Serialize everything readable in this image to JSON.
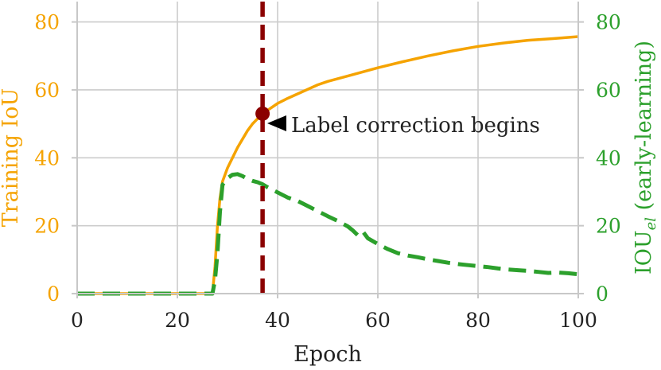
{
  "chart_data": {
    "type": "line",
    "xlabel": "Epoch",
    "ylabel_left": "Training IoU",
    "ylabel_right_main": "IOU",
    "ylabel_right_sub": "el",
    "ylabel_right_suffix": " (early-learning)",
    "xlim": [
      0,
      100
    ],
    "ylim_left": [
      0,
      86
    ],
    "ylim_right": [
      0,
      86
    ],
    "x_ticks": [
      0,
      20,
      40,
      60,
      80,
      100
    ],
    "y_ticks_left": [
      0,
      20,
      40,
      60,
      80
    ],
    "y_ticks_right": [
      0,
      20,
      40,
      60,
      80
    ],
    "grid": true,
    "colors": {
      "training": "#f5a300",
      "early": "#2ca02c",
      "vline": "#8b0000",
      "grid": "#cccccc",
      "axis": "#c8c8c8"
    },
    "series": [
      {
        "axis": "left",
        "style": "solid",
        "x": [
          0,
          10,
          20,
          27,
          27.5,
          28,
          28.5,
          29,
          30,
          31,
          32,
          33,
          34,
          35,
          36,
          37,
          38,
          40,
          42,
          45,
          48,
          50,
          55,
          60,
          65,
          70,
          75,
          80,
          85,
          90,
          95,
          100
        ],
        "y": [
          0,
          0,
          0,
          0,
          8,
          20,
          28,
          33,
          37,
          40,
          43,
          45.5,
          48,
          50,
          51.5,
          53,
          54,
          56,
          57.5,
          59.5,
          61.5,
          62.5,
          64.5,
          66.5,
          68.3,
          70,
          71.5,
          72.8,
          73.8,
          74.6,
          75.1,
          75.7
        ]
      },
      {
        "axis": "right",
        "style": "dashed",
        "x": [
          0,
          10,
          20,
          27,
          27.5,
          28,
          28.5,
          29,
          30,
          31,
          32,
          33,
          34,
          35,
          36,
          37,
          38,
          40,
          42,
          44,
          46,
          48,
          50,
          52,
          54,
          55,
          56,
          57,
          58,
          60,
          62,
          64,
          66,
          68,
          70,
          72,
          74,
          76,
          78,
          80,
          82,
          84,
          86,
          88,
          90,
          92,
          94,
          96,
          98,
          100
        ],
        "y": [
          0,
          0,
          0,
          0,
          4,
          12,
          24,
          32,
          34,
          35,
          35.2,
          34.6,
          33.8,
          33.2,
          32.8,
          32.2,
          31.3,
          29.8,
          28.3,
          27.3,
          25.8,
          24.3,
          22.8,
          21.4,
          19.8,
          18.6,
          17.2,
          18.3,
          16.3,
          14.6,
          13.1,
          11.9,
          11.2,
          10.7,
          10.1,
          9.6,
          9.1,
          8.7,
          8.4,
          8.1,
          7.8,
          7.4,
          7.1,
          6.9,
          6.7,
          6.4,
          6.1,
          6.2,
          6,
          5.7
        ]
      }
    ],
    "vline_x": 37,
    "marker": {
      "x": 37,
      "y": 53
    },
    "annotation_text": "Label correction begins"
  }
}
